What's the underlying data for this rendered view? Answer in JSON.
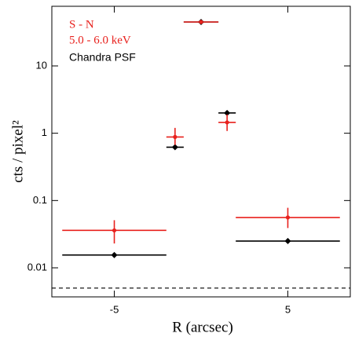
{
  "chart_data": {
    "type": "errorbar",
    "xlabel": "R (arcsec)",
    "ylabel": "cts / pixel²",
    "annotation": "5.0 - 6.0 keV",
    "xlim": [
      -8.6,
      8.6
    ],
    "xticks": [
      -5,
      5
    ],
    "ylim": [
      0.0037,
      77
    ],
    "yticks": [
      0.01,
      0.1,
      1,
      10
    ],
    "log_y": true,
    "legend": "upper left",
    "reference_lines": [
      {
        "y": 0.005,
        "style": "dashed"
      }
    ],
    "series": [
      {
        "name": "Chandra PSF",
        "color": "#000000",
        "marker": "diamond",
        "x": [
          -5,
          -1.5,
          0,
          1.5,
          5
        ],
        "xerr": [
          3,
          0.5,
          1,
          0.5,
          3
        ],
        "values": [
          0.0155,
          0.62,
          45,
          2.0,
          0.025
        ]
      },
      {
        "name": "S - N",
        "color": "#e8211d",
        "marker": "circle",
        "x": [
          -5,
          -1.5,
          0,
          1.5,
          5
        ],
        "xerr": [
          3,
          0.5,
          1,
          0.5,
          3
        ],
        "values": [
          0.036,
          0.88,
          45,
          1.45,
          0.056
        ],
        "yerr_minus": [
          0.013,
          0.21,
          null,
          0.37,
          0.017
        ],
        "yerr_plus": [
          0.015,
          0.32,
          null,
          0.45,
          0.022
        ]
      }
    ]
  }
}
